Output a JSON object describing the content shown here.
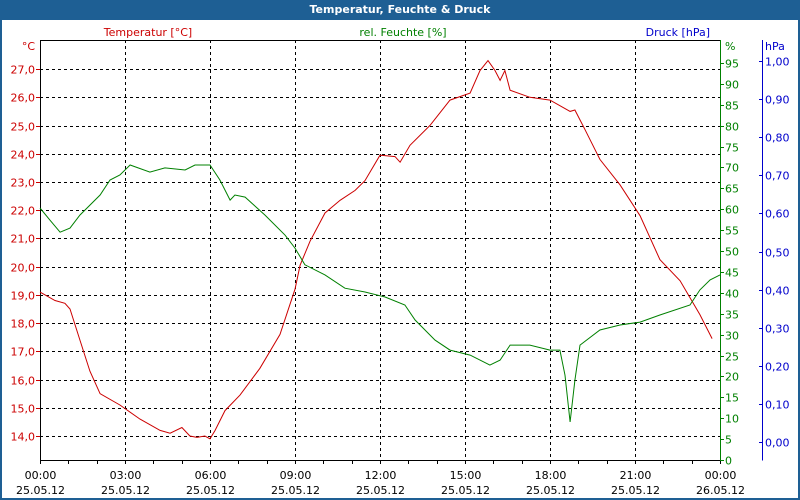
{
  "window": {
    "title": "Temperatur, Feuchte & Druck"
  },
  "colors": {
    "temperature": "#cc0000",
    "humidity": "#008000",
    "pressure": "#0000cc",
    "titlebar": "#1e5f94",
    "grid": "#000000"
  },
  "chart_data": {
    "type": "line",
    "title": "Temperatur, Feuchte & Druck",
    "x_unit": "hours since 25.05.12 00:00",
    "xlim": [
      0,
      24
    ],
    "x_ticks": [
      {
        "h": 0,
        "time": "00:00",
        "date": "25.05.12"
      },
      {
        "h": 3,
        "time": "03:00",
        "date": "25.05.12"
      },
      {
        "h": 6,
        "time": "06:00",
        "date": "25.05.12"
      },
      {
        "h": 9,
        "time": "09:00",
        "date": "25.05.12"
      },
      {
        "h": 12,
        "time": "12:00",
        "date": "25.05.12"
      },
      {
        "h": 15,
        "time": "15:00",
        "date": "25.05.12"
      },
      {
        "h": 18,
        "time": "18:00",
        "date": "25.05.12"
      },
      {
        "h": 21,
        "time": "21:00",
        "date": "25.05.12"
      },
      {
        "h": 24,
        "time": "00:00",
        "date": "26.05.12"
      }
    ],
    "axes": {
      "temperature": {
        "legend": "Temperatur [°C]",
        "unit": "°C",
        "ylim": [
          13.15,
          28.03
        ],
        "ticks": [
          "14,0",
          "15,0",
          "16,0",
          "17,0",
          "18,0",
          "19,0",
          "20,0",
          "21,0",
          "22,0",
          "23,0",
          "24,0",
          "25,0",
          "26,0",
          "27,0"
        ],
        "tick_values": [
          14,
          15,
          16,
          17,
          18,
          19,
          20,
          21,
          22,
          23,
          24,
          25,
          26,
          27
        ]
      },
      "humidity": {
        "legend": "rel. Feuchte [%]",
        "unit": "%",
        "ylim": [
          0,
          100.5
        ],
        "ticks": [
          "0",
          "5",
          "10",
          "15",
          "20",
          "25",
          "30",
          "35",
          "40",
          "45",
          "50",
          "55",
          "60",
          "65",
          "70",
          "75",
          "80",
          "85",
          "90",
          "95"
        ],
        "tick_values": [
          0,
          5,
          10,
          15,
          20,
          25,
          30,
          35,
          40,
          45,
          50,
          55,
          60,
          65,
          70,
          75,
          80,
          85,
          90,
          95
        ]
      },
      "pressure": {
        "legend": "Druck [hPa]",
        "unit": "hPa",
        "ylim": [
          -0.047,
          1.055
        ],
        "ticks": [
          "0,00",
          "0,10",
          "0,20",
          "0,30",
          "0,40",
          "0,50",
          "0,60",
          "0,70",
          "0,80",
          "0,90",
          "1,00"
        ],
        "tick_values": [
          0,
          0.1,
          0.2,
          0.3,
          0.4,
          0.5,
          0.6,
          0.7,
          0.8,
          0.9,
          1.0
        ]
      }
    },
    "grid": true,
    "series": [
      {
        "name": "Temperatur [°C]",
        "axis": "temperature",
        "x": [
          0,
          0.53,
          0.88,
          1.06,
          1.41,
          1.76,
          2.12,
          2.82,
          3.53,
          4.24,
          4.59,
          5.01,
          5.29,
          5.54,
          5.82,
          6.0,
          6.18,
          6.53,
          7.06,
          7.76,
          8.47,
          9.0,
          9.18,
          9.53,
          10.06,
          10.59,
          11.12,
          11.47,
          12.0,
          12.53,
          12.71,
          13.06,
          13.76,
          14.47,
          15.18,
          15.53,
          15.81,
          16.06,
          16.24,
          16.41,
          16.59,
          17.29,
          18.0,
          18.71,
          18.88,
          19.24,
          19.76,
          20.47,
          21.18,
          21.88,
          22.59,
          23.29,
          23.72
        ],
        "y": [
          19.1,
          18.8,
          18.7,
          18.5,
          17.4,
          16.3,
          15.5,
          15.1,
          14.6,
          14.2,
          14.1,
          14.3,
          14.0,
          13.95,
          14.0,
          13.9,
          14.2,
          14.9,
          15.45,
          16.4,
          17.6,
          19.2,
          20.05,
          20.9,
          21.9,
          22.35,
          22.7,
          23.05,
          23.95,
          23.9,
          23.7,
          24.3,
          25.0,
          25.9,
          26.15,
          26.95,
          27.3,
          26.95,
          26.6,
          26.95,
          26.25,
          26.0,
          25.9,
          25.5,
          25.55,
          24.85,
          23.8,
          22.9,
          21.8,
          20.25,
          19.5,
          18.3,
          17.45
        ]
      },
      {
        "name": "rel. Feuchte [%]",
        "axis": "humidity",
        "x": [
          0,
          0.35,
          0.71,
          1.06,
          1.41,
          2.12,
          2.47,
          2.82,
          3.18,
          3.88,
          4.41,
          5.12,
          5.47,
          6.0,
          6.35,
          6.71,
          6.88,
          7.24,
          7.94,
          8.65,
          9.0,
          9.35,
          10.06,
          10.76,
          11.47,
          12.18,
          12.88,
          13.24,
          13.94,
          14.47,
          15.18,
          15.88,
          16.24,
          16.59,
          17.29,
          18.0,
          18.35,
          18.53,
          18.71,
          18.88,
          19.06,
          19.76,
          20.47,
          21.18,
          21.88,
          22.94,
          23.29,
          23.65,
          24.0
        ],
        "y": [
          60.3,
          57.4,
          54.5,
          55.5,
          58.6,
          63.4,
          67,
          68.2,
          70.6,
          68.9,
          69.9,
          69.4,
          70.6,
          70.6,
          67,
          62.2,
          63.4,
          62.9,
          58.6,
          53.8,
          50.7,
          46.7,
          44.3,
          41.1,
          40.2,
          39,
          37.1,
          33.5,
          28.7,
          26.3,
          25.1,
          22.7,
          23.9,
          27.5,
          27.5,
          26.3,
          26.3,
          20.3,
          9.1,
          19.1,
          27.5,
          31.1,
          32.3,
          33,
          34.7,
          37.1,
          40.7,
          43.1,
          44.3
        ]
      }
    ]
  }
}
